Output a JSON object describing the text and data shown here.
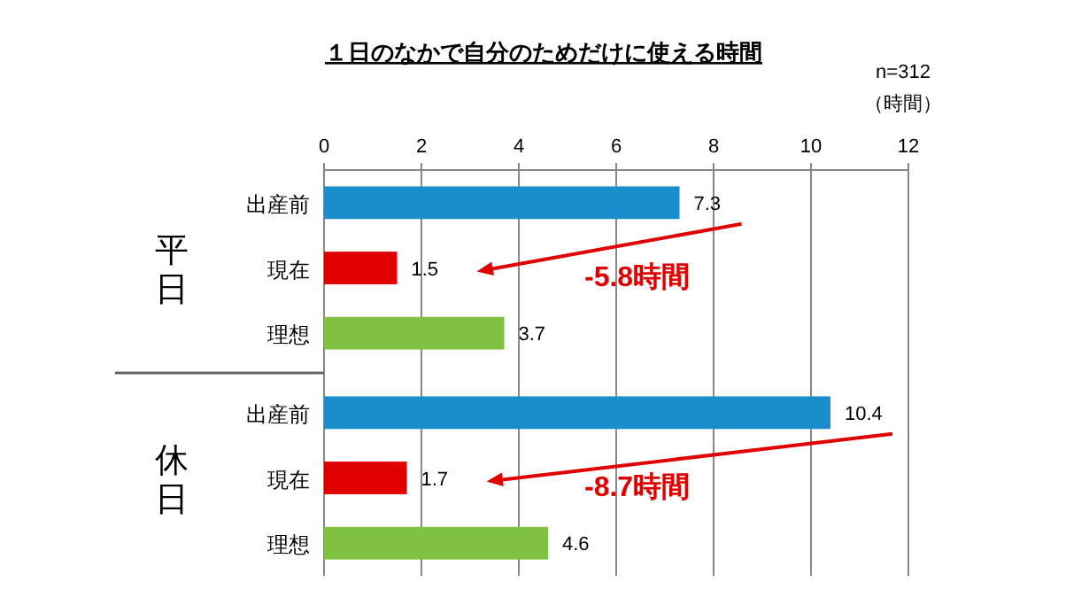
{
  "chart_data": {
    "type": "bar",
    "orientation": "horizontal",
    "title": "１日のなかで自分のためだけに使える時間",
    "categories": [
      "出産前",
      "現在",
      "理想",
      "出産前",
      "現在",
      "理想"
    ],
    "values": [
      7.3,
      1.5,
      3.7,
      10.4,
      1.7,
      4.6
    ],
    "colors": [
      "#1b8ccc",
      "#e00000",
      "#7fc241",
      "#1b8ccc",
      "#e00000",
      "#7fc241"
    ],
    "xlim": [
      0,
      12
    ],
    "xticks": [
      0,
      2,
      4,
      6,
      8,
      10,
      12
    ],
    "grid": "x",
    "data_labels": true,
    "annotations": [
      "n=312",
      "（時間）",
      "平日",
      "休日",
      "-5.8時間",
      "-8.7時間"
    ]
  }
}
